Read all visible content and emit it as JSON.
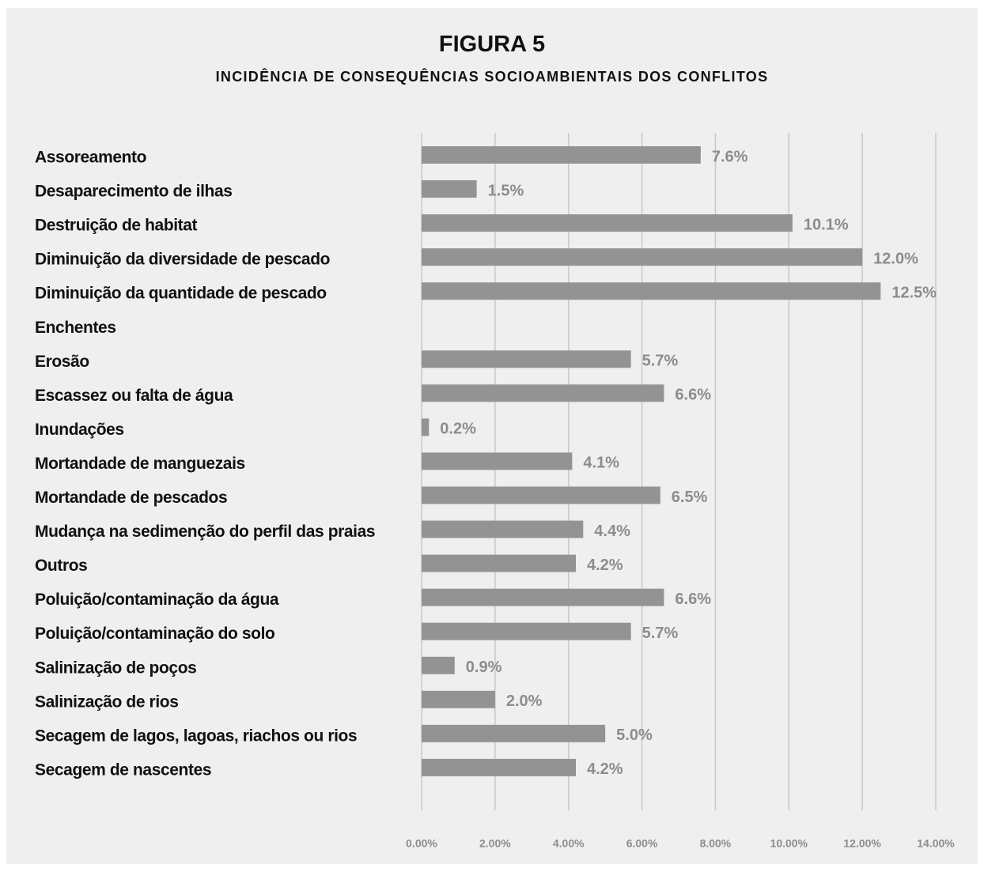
{
  "chart_data": {
    "type": "hbar",
    "title": "FIGURA 5",
    "subtitle": "INCIDÊNCIA DE CONSEQUÊNCIAS SOCIOAMBIENTAIS DOS CONFLITOS",
    "categories": [
      "Assoreamento",
      "Desaparecimento de ilhas",
      "Destruição de habitat",
      "Diminuição da diversidade de pescado",
      "Diminuição da quantidade de pescado",
      "Enchentes",
      "Erosão",
      "Escassez ou falta de água",
      "Inundações",
      "Mortandade de manguezais",
      "Mortandade de pescados",
      "Mudança na sedimenção do perfil das praias",
      "Outros",
      "Poluição/contaminação da água",
      "Poluição/contaminação do solo",
      "Salinização de poços",
      "Salinização de rios",
      "Secagem de lagos, lagoas, riachos ou rios",
      "Secagem de nascentes"
    ],
    "values": [
      7.6,
      1.5,
      10.1,
      12.0,
      12.5,
      null,
      5.7,
      6.6,
      0.2,
      4.1,
      6.5,
      4.4,
      4.2,
      6.6,
      5.7,
      0.9,
      2.0,
      5.0,
      4.2
    ],
    "value_labels": [
      "7.6%",
      "1.5%",
      "10.1%",
      "12.0%",
      "12.5%",
      null,
      "5.7%",
      "6.6%",
      "0.2%",
      "4.1%",
      "6.5%",
      "4.4%",
      "4.2%",
      "6.6%",
      "5.7%",
      "0.9%",
      "2.0%",
      "5.0%",
      "4.2%"
    ],
    "color": "#939393",
    "xlim": [
      0,
      14
    ],
    "xticks": [
      {
        "value": 0,
        "label": "0.00%"
      },
      {
        "value": 2,
        "label": "2.00%"
      },
      {
        "value": 4,
        "label": "4.00%"
      },
      {
        "value": 6,
        "label": "6.00%"
      },
      {
        "value": 8,
        "label": "8.00%"
      },
      {
        "value": 10,
        "label": "10.00%"
      },
      {
        "value": 12,
        "label": "12.00%"
      },
      {
        "value": 14,
        "label": "14.00%"
      }
    ],
    "grid": true
  }
}
